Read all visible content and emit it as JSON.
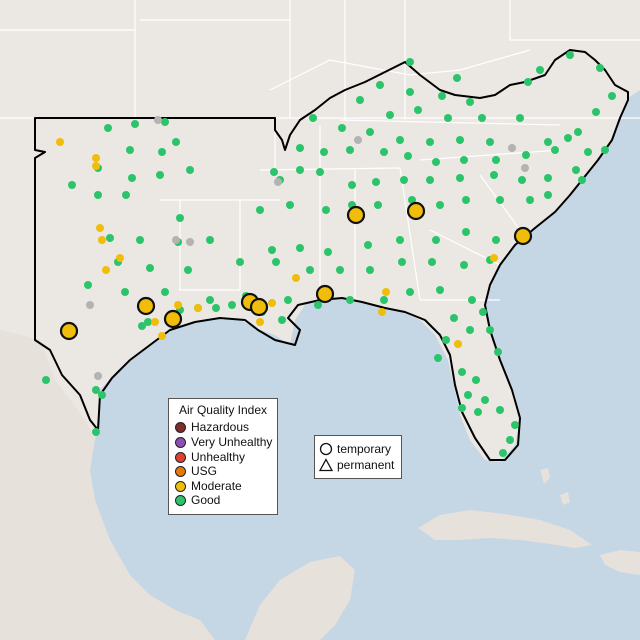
{
  "colors": {
    "ocean": "#c5d6e5",
    "land": "#e9e5e1",
    "land_alt": "#e3ddd7",
    "border": "#ffffff",
    "study_outline": "#000000",
    "gray_site": "#b3b3b3"
  },
  "aqi_legend": {
    "title": "Air Quality Index",
    "levels": [
      {
        "label": "Hazardous",
        "color": "#7e2c2c"
      },
      {
        "label": "Very Unhealthy",
        "color": "#8e4fb5"
      },
      {
        "label": "Unhealthy",
        "color": "#e0402f"
      },
      {
        "label": "USG",
        "color": "#e6780e"
      },
      {
        "label": "Moderate",
        "color": "#f0bd0a"
      },
      {
        "label": "Good",
        "color": "#2cc46b"
      }
    ]
  },
  "monitor_type_legend": {
    "items": [
      {
        "label": "temporary",
        "symbol": "circle-icon"
      },
      {
        "label": "permanent",
        "symbol": "triangle-icon"
      }
    ]
  }
}
